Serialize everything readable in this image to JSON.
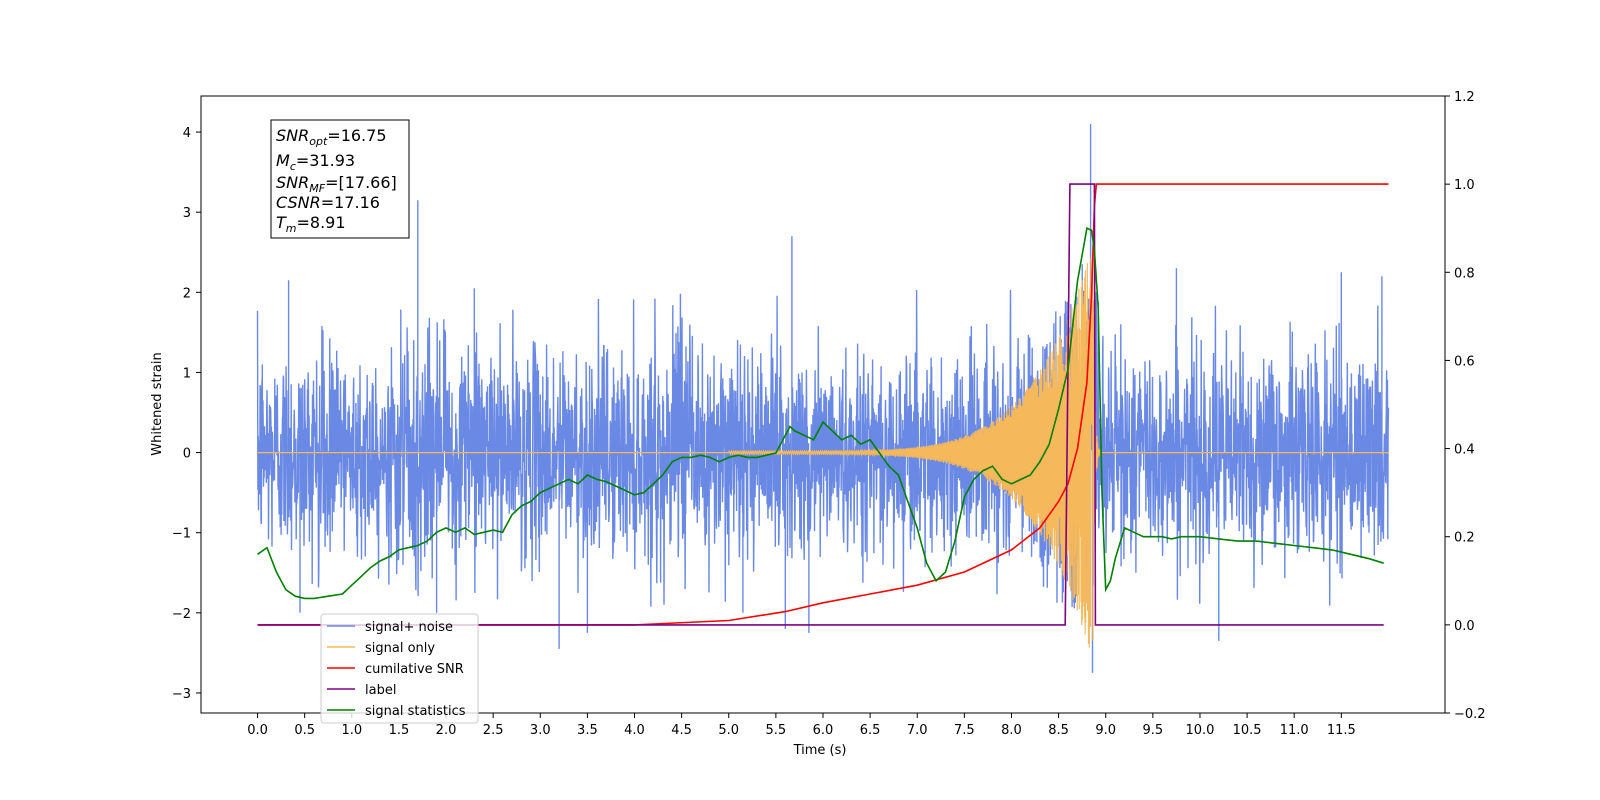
{
  "chart_data": {
    "type": "line",
    "xlabel": "Time (s)",
    "ylabel": "Whitened strain",
    "xlim": [
      -0.6,
      12.6
    ],
    "ylim": [
      -3.25,
      4.45
    ],
    "ylim_right": [
      -0.2,
      1.2
    ],
    "x_ticks": [
      "0.0",
      "0.5",
      "1.0",
      "1.5",
      "2.0",
      "2.5",
      "3.0",
      "3.5",
      "4.0",
      "4.5",
      "5.0",
      "5.5",
      "6.0",
      "6.5",
      "7.0",
      "7.5",
      "8.0",
      "8.5",
      "9.0",
      "9.5",
      "10.0",
      "10.5",
      "11.0",
      "11.5"
    ],
    "y_ticks": [
      "4",
      "3",
      "2",
      "1",
      "0",
      "−1",
      "−2",
      "−3"
    ],
    "y_right_ticks": [
      "1.2",
      "1.0",
      "0.8",
      "0.6",
      "0.4",
      "0.2",
      "0.0",
      "−0.2"
    ],
    "annotation": {
      "lines": [
        {
          "base": "SNR",
          "sub": "opt",
          "value": "=16.75"
        },
        {
          "base": "M",
          "sub": "c",
          "value": "=31.93"
        },
        {
          "base": "SNR",
          "sub": "MF",
          "value": "=[17.66]"
        },
        {
          "base": "CSNR",
          "sub": "",
          "value": "=17.16"
        },
        {
          "base": "T",
          "sub": "m",
          "value": "=8.91"
        }
      ]
    },
    "legend": {
      "position": "lower-left",
      "entries": [
        {
          "label": "signal+ noise",
          "color": "#6a89e4"
        },
        {
          "label": "signal only",
          "color": "#f5b85a"
        },
        {
          "label": "cumilative SNR",
          "color": "#ff0000"
        },
        {
          "label": "label",
          "color": "#800080"
        },
        {
          "label": "signal statistics",
          "color": "#008000"
        }
      ]
    },
    "series": [
      {
        "name": "signal+ noise",
        "axis": "left",
        "color": "#6a89e4",
        "duration": [
          0.0,
          12.0
        ],
        "typical_amplitude": 0.75,
        "peaks": [
          [
            0.05,
            1.1
          ],
          [
            0.33,
            2.15
          ],
          [
            0.45,
            -2.0
          ],
          [
            1.7,
            3.15
          ],
          [
            1.9,
            -2.0
          ],
          [
            2.3,
            2.05
          ],
          [
            3.2,
            -2.45
          ],
          [
            3.5,
            -2.25
          ],
          [
            5.15,
            -2.0
          ],
          [
            5.6,
            -2.2
          ],
          [
            5.67,
            2.7
          ],
          [
            5.85,
            -2.25
          ],
          [
            8.75,
            2.35
          ],
          [
            8.84,
            4.1
          ],
          [
            8.86,
            -2.75
          ],
          [
            9.75,
            2.3
          ],
          [
            10.2,
            -2.35
          ],
          [
            11.5,
            2.25
          ],
          [
            11.93,
            2.2
          ]
        ]
      },
      {
        "name": "signal only",
        "axis": "left",
        "color": "#f5b85a",
        "chirp": {
          "start": 5.0,
          "merger": 8.87,
          "end": 8.95,
          "peak_amplitude": 2.6
        }
      },
      {
        "name": "cumilative SNR",
        "axis": "right",
        "color": "#ff0000",
        "x": [
          0.0,
          4.0,
          5.0,
          5.6,
          6.0,
          6.5,
          7.0,
          7.5,
          8.0,
          8.3,
          8.5,
          8.6,
          8.7,
          8.8,
          8.85,
          8.88,
          8.9,
          8.93,
          12.0
        ],
        "y": [
          0.0,
          0.0,
          0.01,
          0.03,
          0.05,
          0.07,
          0.09,
          0.12,
          0.17,
          0.22,
          0.28,
          0.32,
          0.4,
          0.55,
          0.75,
          0.95,
          1.0,
          1.0,
          1.0
        ]
      },
      {
        "name": "label",
        "axis": "right",
        "color": "#800080",
        "x": [
          0.0,
          8.57,
          8.62,
          8.88,
          8.89,
          8.93,
          11.95
        ],
        "y": [
          0.0,
          0.0,
          1.0,
          1.0,
          0.0,
          0.0,
          0.0
        ]
      },
      {
        "name": "signal statistics",
        "axis": "right",
        "color": "#008000",
        "x": [
          0.0,
          0.1,
          0.2,
          0.3,
          0.4,
          0.5,
          0.6,
          0.75,
          0.9,
          1.0,
          1.1,
          1.2,
          1.3,
          1.4,
          1.5,
          1.6,
          1.7,
          1.8,
          1.9,
          2.0,
          2.1,
          2.2,
          2.3,
          2.4,
          2.5,
          2.6,
          2.7,
          2.8,
          2.9,
          3.0,
          3.1,
          3.2,
          3.3,
          3.4,
          3.5,
          3.6,
          3.7,
          3.8,
          3.9,
          4.0,
          4.1,
          4.2,
          4.3,
          4.4,
          4.5,
          4.6,
          4.7,
          4.8,
          4.9,
          5.0,
          5.1,
          5.2,
          5.3,
          5.4,
          5.5,
          5.6,
          5.65,
          5.7,
          5.8,
          5.9,
          6.0,
          6.05,
          6.1,
          6.2,
          6.3,
          6.4,
          6.5,
          6.6,
          6.7,
          6.8,
          6.9,
          7.0,
          7.1,
          7.2,
          7.3,
          7.4,
          7.5,
          7.6,
          7.7,
          7.8,
          7.9,
          8.0,
          8.1,
          8.2,
          8.3,
          8.4,
          8.5,
          8.6,
          8.7,
          8.8,
          8.85,
          8.88,
          8.92,
          8.96,
          9.0,
          9.05,
          9.1,
          9.2,
          9.3,
          9.4,
          9.5,
          9.6,
          9.7,
          9.8,
          9.9,
          10.0,
          10.2,
          10.4,
          10.6,
          10.8,
          11.0,
          11.2,
          11.4,
          11.6,
          11.8,
          11.95
        ],
        "y": [
          0.16,
          0.175,
          0.12,
          0.08,
          0.065,
          0.06,
          0.06,
          0.065,
          0.07,
          0.09,
          0.11,
          0.13,
          0.145,
          0.155,
          0.17,
          0.175,
          0.18,
          0.19,
          0.21,
          0.22,
          0.21,
          0.22,
          0.205,
          0.21,
          0.215,
          0.21,
          0.25,
          0.27,
          0.28,
          0.3,
          0.31,
          0.32,
          0.33,
          0.32,
          0.34,
          0.33,
          0.325,
          0.315,
          0.305,
          0.295,
          0.3,
          0.32,
          0.34,
          0.37,
          0.38,
          0.38,
          0.385,
          0.38,
          0.37,
          0.38,
          0.385,
          0.38,
          0.38,
          0.385,
          0.39,
          0.43,
          0.45,
          0.44,
          0.43,
          0.42,
          0.46,
          0.45,
          0.44,
          0.42,
          0.43,
          0.41,
          0.42,
          0.39,
          0.36,
          0.34,
          0.28,
          0.22,
          0.14,
          0.1,
          0.12,
          0.19,
          0.29,
          0.33,
          0.35,
          0.36,
          0.33,
          0.32,
          0.33,
          0.34,
          0.37,
          0.41,
          0.49,
          0.58,
          0.78,
          0.9,
          0.895,
          0.85,
          0.72,
          0.3,
          0.08,
          0.1,
          0.15,
          0.22,
          0.21,
          0.2,
          0.2,
          0.2,
          0.195,
          0.2,
          0.2,
          0.2,
          0.195,
          0.19,
          0.19,
          0.185,
          0.18,
          0.175,
          0.17,
          0.16,
          0.15,
          0.14
        ]
      }
    ]
  }
}
